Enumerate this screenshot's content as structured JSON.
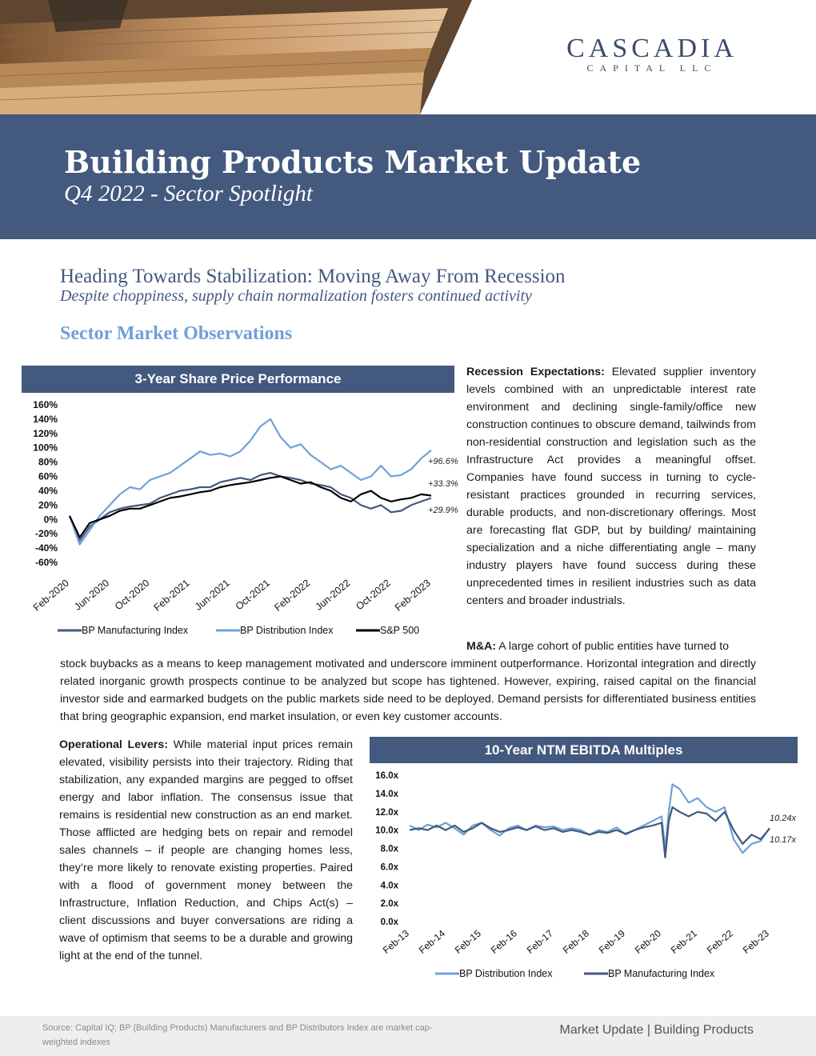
{
  "brand": {
    "name": "CASCADIA",
    "sub": "CAPITAL LLC",
    "color": "#3b4c6b"
  },
  "header": {
    "title": "Building Products Market Update",
    "subtitle": "Q4 2022 - Sector Spotlight",
    "banner_color": "#43597e"
  },
  "headline": "Heading Towards Stabilization: Moving Away From Recession",
  "subheadline": "Despite choppiness, supply chain normalization fosters continued activity",
  "section_title": "Sector Market Observations",
  "recession": {
    "label": "Recession Expectations:",
    "text": " Elevated supplier inventory levels combined with an unpredictable interest rate environment and declining single-family/office new construction continues to obscure demand, tailwinds from non-residential construction and legislation such as the Infrastructure Act provides a meaningful offset. Companies have found success in turning to cycle-resistant practices grounded in recurring services, durable products, and non-discretionary offerings. Most are forecasting flat GDP, but by building/ maintaining specialization and a niche differentiating angle – many industry players have found success during these unprecedented times in resilient industries such as data centers and broader industrials."
  },
  "ma": {
    "label": "M&A:",
    "text_first": " A large cohort of public entities have turned to",
    "text_rest": "stock buybacks as a means to keep management motivated and underscore imminent outperformance. Horizontal integration and directly related inorganic growth prospects continue to be analyzed but scope has tightened. However, expiring, raised capital on the financial investor side and earmarked budgets on the public markets side need to be deployed. Demand persists for differentiated business entities that bring geographic expansion, end market insulation, or even key customer accounts."
  },
  "operational": {
    "label": "Operational Levers:",
    "text": " While material input prices remain elevated, visibility persists into their trajectory. Riding that stabilization, any expanded margins are pegged to offset energy and labor inflation. The consensus issue that remains is residential new construction as an end market. Those afflicted are hedging bets on repair and remodel sales channels – if people are changing homes less, they’re more likely to renovate existing properties. Paired with a flood of government money between the Infrastructure, Inflation Reduction, and Chips Act(s) – client discussions and buyer conversations are riding a wave of optimism that seems to be a durable and growing light at the end of the tunnel."
  },
  "footer": {
    "source": "Source: Capital IQ; BP (Building Products) Manufacturers and BP Distributors Index are market cap-weighted indexes",
    "right": "Market Update | Building Products"
  },
  "chart_data": [
    {
      "type": "line",
      "title": "3-Year Share Price Performance",
      "x_ticks": [
        "Feb-2020",
        "Jun-2020",
        "Oct-2020",
        "Feb-2021",
        "Jun-2021",
        "Oct-2021",
        "Feb-2022",
        "Jun-2022",
        "Oct-2022",
        "Feb-2023"
      ],
      "y_ticks": [
        "160%",
        "140%",
        "120%",
        "100%",
        "80%",
        "60%",
        "40%",
        "20%",
        "0%",
        "-20%",
        "-40%",
        "-60%"
      ],
      "ylim": [
        -60,
        160
      ],
      "x": [
        0,
        1,
        2,
        3,
        4,
        5,
        6,
        7,
        8,
        9,
        10,
        11,
        12,
        13,
        14,
        15,
        16,
        17,
        18,
        19,
        20,
        21,
        22,
        23,
        24,
        25,
        26,
        27,
        28,
        29,
        30,
        31,
        32,
        33,
        34,
        35,
        36
      ],
      "legend_position": "bottom",
      "end_labels": [
        "+96.6%",
        "+33.3%",
        "+29.9%"
      ],
      "series": [
        {
          "name": "BP Manufacturing Index",
          "color": "#43597e",
          "values": [
            5,
            -30,
            -10,
            0,
            10,
            15,
            18,
            20,
            22,
            30,
            35,
            40,
            42,
            45,
            45,
            52,
            55,
            58,
            55,
            62,
            65,
            60,
            58,
            55,
            50,
            48,
            45,
            35,
            30,
            20,
            15,
            20,
            10,
            12,
            20,
            25,
            29.9
          ]
        },
        {
          "name": "BP Distribution Index",
          "color": "#6fa0d8",
          "values": [
            5,
            -35,
            -15,
            5,
            20,
            35,
            45,
            42,
            55,
            60,
            65,
            75,
            85,
            95,
            90,
            92,
            88,
            95,
            110,
            130,
            140,
            115,
            100,
            105,
            90,
            80,
            70,
            75,
            65,
            55,
            60,
            75,
            60,
            62,
            70,
            85,
            96.6
          ]
        },
        {
          "name": "S&P 500",
          "color": "#000000",
          "values": [
            5,
            -25,
            -5,
            0,
            5,
            12,
            15,
            15,
            20,
            25,
            30,
            32,
            35,
            38,
            40,
            45,
            48,
            50,
            52,
            55,
            58,
            60,
            55,
            50,
            52,
            45,
            40,
            30,
            25,
            35,
            40,
            30,
            25,
            28,
            30,
            35,
            33.3
          ]
        }
      ]
    },
    {
      "type": "line",
      "title": "10-Year NTM EBITDA Multiples",
      "x_ticks": [
        "Feb-13",
        "Feb-14",
        "Feb-15",
        "Feb-16",
        "Feb-17",
        "Feb-18",
        "Feb-19",
        "Feb-20",
        "Feb-21",
        "Feb-22",
        "Feb-23"
      ],
      "y_ticks": [
        "16.0x",
        "14.0x",
        "12.0x",
        "10.0x",
        "8.0x",
        "6.0x",
        "4.0x",
        "2.0x",
        "0.0x"
      ],
      "ylim": [
        0,
        16
      ],
      "x": [
        0,
        0.25,
        0.5,
        0.75,
        1,
        1.25,
        1.5,
        1.75,
        2,
        2.25,
        2.5,
        2.75,
        3,
        3.25,
        3.5,
        3.75,
        4,
        4.25,
        4.5,
        4.75,
        5,
        5.25,
        5.5,
        5.75,
        6,
        6.25,
        6.5,
        6.75,
        7,
        7.1,
        7.2,
        7.3,
        7.5,
        7.75,
        8,
        8.25,
        8.5,
        8.75,
        9,
        9.25,
        9.5,
        9.75,
        10
      ],
      "legend_position": "bottom",
      "end_labels": [
        "10.24x",
        "10.17x"
      ],
      "series": [
        {
          "name": "BP Distribution Index",
          "color": "#6fa0d8",
          "values": [
            10.5,
            10.0,
            10.6,
            10.3,
            10.8,
            10.2,
            9.5,
            10.5,
            10.8,
            10.0,
            9.4,
            10.2,
            10.5,
            10.0,
            10.5,
            10.3,
            10.4,
            10.0,
            10.2,
            10.0,
            9.5,
            10.0,
            9.8,
            10.3,
            9.5,
            10.0,
            10.5,
            11.0,
            11.5,
            8.0,
            12.0,
            15.0,
            14.5,
            13.0,
            13.5,
            12.5,
            12.0,
            12.5,
            9.0,
            7.5,
            8.5,
            8.8,
            10.24
          ]
        },
        {
          "name": "BP Manufacturing Index",
          "color": "#43597e",
          "values": [
            10.0,
            10.2,
            10.0,
            10.5,
            10.0,
            10.5,
            9.8,
            10.2,
            10.8,
            10.2,
            9.8,
            10.0,
            10.3,
            10.0,
            10.4,
            10.0,
            10.2,
            9.8,
            10.0,
            9.8,
            9.5,
            9.8,
            9.7,
            10.0,
            9.6,
            10.0,
            10.3,
            10.5,
            10.8,
            7.0,
            11.0,
            12.5,
            12.0,
            11.5,
            12.0,
            11.8,
            11.0,
            12.0,
            10.0,
            8.5,
            9.5,
            9.0,
            10.17
          ]
        }
      ]
    }
  ]
}
